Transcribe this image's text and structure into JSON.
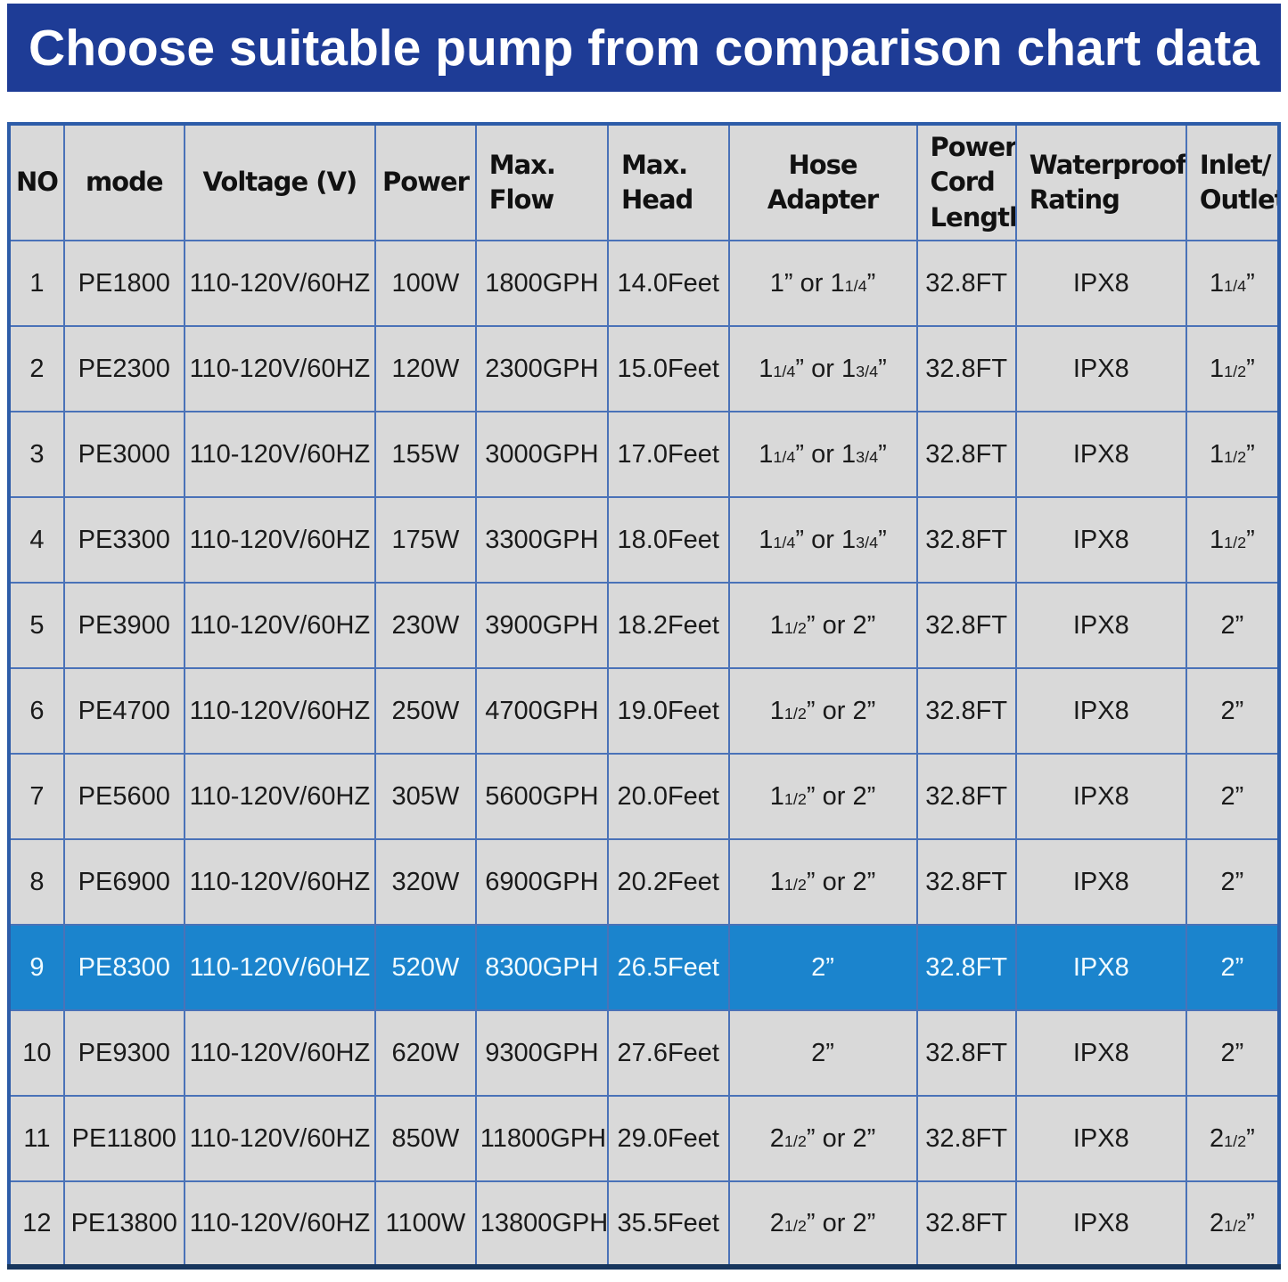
{
  "banner": {
    "title": "Choose suitable pump from comparison chart data"
  },
  "colors": {
    "banner_bg": "#1e3c96",
    "banner_text": "#ffffff",
    "cell_bg": "#d9d9d9",
    "border_outer": "#2d5ca8",
    "border_inner": "#4a72b8",
    "border_bottom": "#17365d",
    "highlight_row_bg": "#1b84cd",
    "highlight_row_text": "#f0fbff",
    "body_text": "#1a1a1a"
  },
  "table": {
    "columns": [
      {
        "key": "no",
        "label": "NO",
        "align": "center",
        "width_pct": 4.34
      },
      {
        "key": "mode",
        "label": "mode",
        "align": "center",
        "width_pct": 9.45
      },
      {
        "key": "voltage",
        "label": "Voltage (V)",
        "align": "center",
        "width_pct": 15.04
      },
      {
        "key": "power",
        "label": "Power",
        "align": "center",
        "width_pct": 7.9
      },
      {
        "key": "max_flow",
        "label": "Max.\nFlow",
        "align": "left",
        "width_pct": 10.4
      },
      {
        "key": "max_head",
        "label": "Max.\nHead",
        "align": "left",
        "width_pct": 9.5
      },
      {
        "key": "hose_adapter",
        "label": "Hose Adapter",
        "align": "center",
        "width_pct": 14.8
      },
      {
        "key": "cord_length",
        "label": "Power\nCord\nLength",
        "align": "left",
        "width_pct": 7.8
      },
      {
        "key": "waterproof",
        "label": "Waterproof\nRating",
        "align": "left",
        "width_pct": 13.4
      },
      {
        "key": "inlet_outlet",
        "label": "Inlet/\nOutlet",
        "align": "left",
        "width_pct": 7.3
      }
    ],
    "highlighted_row_no": 9,
    "rows": [
      [
        "1",
        "PE1800",
        "110-120V/60HZ",
        "100W",
        "1800GPH",
        "14.0Feet",
        "1” or 1[1/4]”",
        "32.8FT",
        "IPX8",
        "1[1/4]”"
      ],
      [
        "2",
        "PE2300",
        "110-120V/60HZ",
        "120W",
        "2300GPH",
        "15.0Feet",
        "1[1/4]” or 1[3/4]”",
        "32.8FT",
        "IPX8",
        "1[1/2]”"
      ],
      [
        "3",
        "PE3000",
        "110-120V/60HZ",
        "155W",
        "3000GPH",
        "17.0Feet",
        "1[1/4]” or 1[3/4]”",
        "32.8FT",
        "IPX8",
        "1[1/2]”"
      ],
      [
        "4",
        "PE3300",
        "110-120V/60HZ",
        "175W",
        "3300GPH",
        "18.0Feet",
        "1[1/4]” or 1[3/4]”",
        "32.8FT",
        "IPX8",
        "1[1/2]”"
      ],
      [
        "5",
        "PE3900",
        "110-120V/60HZ",
        "230W",
        "3900GPH",
        "18.2Feet",
        "1[1/2]” or 2”",
        "32.8FT",
        "IPX8",
        "2”"
      ],
      [
        "6",
        "PE4700",
        "110-120V/60HZ",
        "250W",
        "4700GPH",
        "19.0Feet",
        "1[1/2]” or 2”",
        "32.8FT",
        "IPX8",
        "2”"
      ],
      [
        "7",
        "PE5600",
        "110-120V/60HZ",
        "305W",
        "5600GPH",
        "20.0Feet",
        "1[1/2]” or 2”",
        "32.8FT",
        "IPX8",
        "2”"
      ],
      [
        "8",
        "PE6900",
        "110-120V/60HZ",
        "320W",
        "6900GPH",
        "20.2Feet",
        "1[1/2]” or 2”",
        "32.8FT",
        "IPX8",
        "2”"
      ],
      [
        "9",
        "PE8300",
        "110-120V/60HZ",
        "520W",
        "8300GPH",
        "26.5Feet",
        "2”",
        "32.8FT",
        "IPX8",
        "2”"
      ],
      [
        "10",
        "PE9300",
        "110-120V/60HZ",
        "620W",
        "9300GPH",
        "27.6Feet",
        "2”",
        "32.8FT",
        "IPX8",
        "2”"
      ],
      [
        "11",
        "PE11800",
        "110-120V/60HZ",
        "850W",
        "11800GPH",
        "29.0Feet",
        "2[1/2]” or 2”",
        "32.8FT",
        "IPX8",
        "2[1/2]”"
      ],
      [
        "12",
        "PE13800",
        "110-120V/60HZ",
        "1100W",
        "13800GPH",
        "35.5Feet",
        "2[1/2]” or 2”",
        "32.8FT",
        "IPX8",
        "2[1/2]”"
      ]
    ]
  }
}
